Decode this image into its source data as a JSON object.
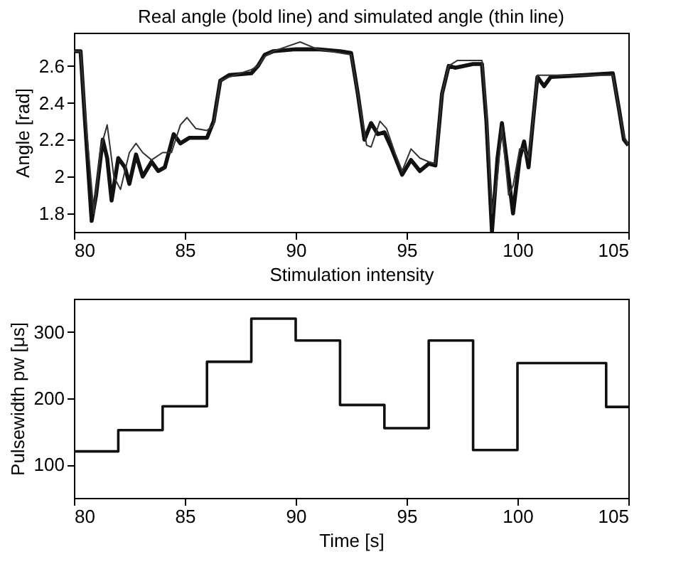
{
  "chart_data": [
    {
      "type": "line",
      "title": "Real angle (bold line) and simulated angle (thin line)",
      "xlabel": "Stimulation intensity",
      "ylabel": "Angle [rad]",
      "xlim": [
        80,
        105
      ],
      "xticks": [
        80,
        85,
        90,
        95,
        100,
        105
      ],
      "ylim": [
        1.7,
        2.78
      ],
      "yticks": [
        1.8,
        2,
        2.2,
        2.4,
        2.6
      ],
      "grid": false,
      "line_style": "solid",
      "series": [
        {
          "color": "#111111",
          "x": [
            80,
            80.3,
            80.5,
            80.8,
            81.0,
            81.3,
            81.5,
            81.7,
            82.0,
            82.3,
            82.5,
            82.8,
            83.1,
            83.5,
            83.8,
            84.1,
            84.5,
            84.8,
            85.2,
            86.0,
            86.3,
            86.6,
            87.0,
            88.0,
            88.3,
            88.6,
            89.0,
            90,
            91,
            92,
            92.5,
            92.8,
            93.1,
            93.4,
            93.7,
            94.0,
            94.3,
            94.8,
            95.2,
            95.6,
            96.0,
            96.3,
            96.6,
            96.9,
            97.2,
            98.0,
            98.4,
            98.6,
            98.85,
            99.1,
            99.3,
            99.5,
            99.8,
            100.1,
            100.3,
            100.5,
            100.7,
            100.9,
            101.2,
            101.5,
            103,
            104.3,
            104.6,
            104.8,
            105
          ],
          "values": [
            2.68,
            2.68,
            2.3,
            1.76,
            1.9,
            2.2,
            2.1,
            1.87,
            2.1,
            2.05,
            1.96,
            2.12,
            2.0,
            2.08,
            2.03,
            2.05,
            2.23,
            2.18,
            2.21,
            2.21,
            2.3,
            2.52,
            2.55,
            2.56,
            2.6,
            2.66,
            2.68,
            2.69,
            2.69,
            2.68,
            2.67,
            2.45,
            2.2,
            2.29,
            2.23,
            2.24,
            2.16,
            2.01,
            2.09,
            2.03,
            2.07,
            2.06,
            2.45,
            2.6,
            2.59,
            2.61,
            2.61,
            2.3,
            1.7,
            2.1,
            2.29,
            2.1,
            1.8,
            2.1,
            2.19,
            2.05,
            2.3,
            2.54,
            2.49,
            2.54,
            2.55,
            2.56,
            2.35,
            2.2,
            2.17
          ]
        },
        {
          "color": "#333333",
          "x": [
            80,
            80.3,
            80.5,
            80.9,
            81.2,
            81.5,
            81.8,
            82.1,
            82.5,
            82.8,
            83.1,
            83.5,
            84,
            84.4,
            84.8,
            85.1,
            85.5,
            86.0,
            86.3,
            86.6,
            87,
            88,
            88.3,
            88.6,
            89,
            90.2,
            91,
            92.5,
            92.8,
            93.2,
            93.4,
            93.8,
            94.1,
            94.5,
            94.8,
            95.2,
            95.6,
            96.0,
            96.3,
            96.6,
            96.9,
            97.3,
            98.4,
            98.6,
            98.85,
            99.1,
            99.3,
            99.6,
            99.8,
            100.1,
            100.3,
            100.5,
            100.7,
            100.9,
            101.2,
            103,
            104.3,
            104.6,
            104.8,
            105
          ],
          "values": [
            2.68,
            2.68,
            2.35,
            1.8,
            2.15,
            2.28,
            2.0,
            1.93,
            2.13,
            2.18,
            2.13,
            2.09,
            2.13,
            2.13,
            2.28,
            2.32,
            2.26,
            2.25,
            2.28,
            2.52,
            2.54,
            2.58,
            2.6,
            2.65,
            2.68,
            2.73,
            2.69,
            2.66,
            2.45,
            2.17,
            2.16,
            2.3,
            2.26,
            2.12,
            2.03,
            2.15,
            2.1,
            2.08,
            2.07,
            2.45,
            2.6,
            2.63,
            2.63,
            2.35,
            1.8,
            2.0,
            2.27,
            1.9,
            1.95,
            2.15,
            2.15,
            2.1,
            2.3,
            2.55,
            2.55,
            2.55,
            2.55,
            2.35,
            2.22,
            2.17
          ]
        }
      ]
    },
    {
      "type": "step",
      "xlabel": "Time [s]",
      "ylabel": "Pulsewidth pw [μs]",
      "xlim": [
        80,
        105
      ],
      "xticks": [
        80,
        85,
        90,
        95,
        100,
        105
      ],
      "ylim": [
        50,
        350
      ],
      "yticks": [
        100,
        200,
        300
      ],
      "grid": false,
      "line_style": "solid",
      "series": [
        {
          "color": "#111111",
          "x": [
            80,
            82,
            84,
            86,
            88,
            90,
            92,
            94,
            96,
            98,
            100,
            104,
            105
          ],
          "values": [
            120,
            152,
            188,
            255,
            320,
            287,
            190,
            155,
            287,
            122,
            253,
            187,
            187
          ]
        }
      ]
    }
  ]
}
